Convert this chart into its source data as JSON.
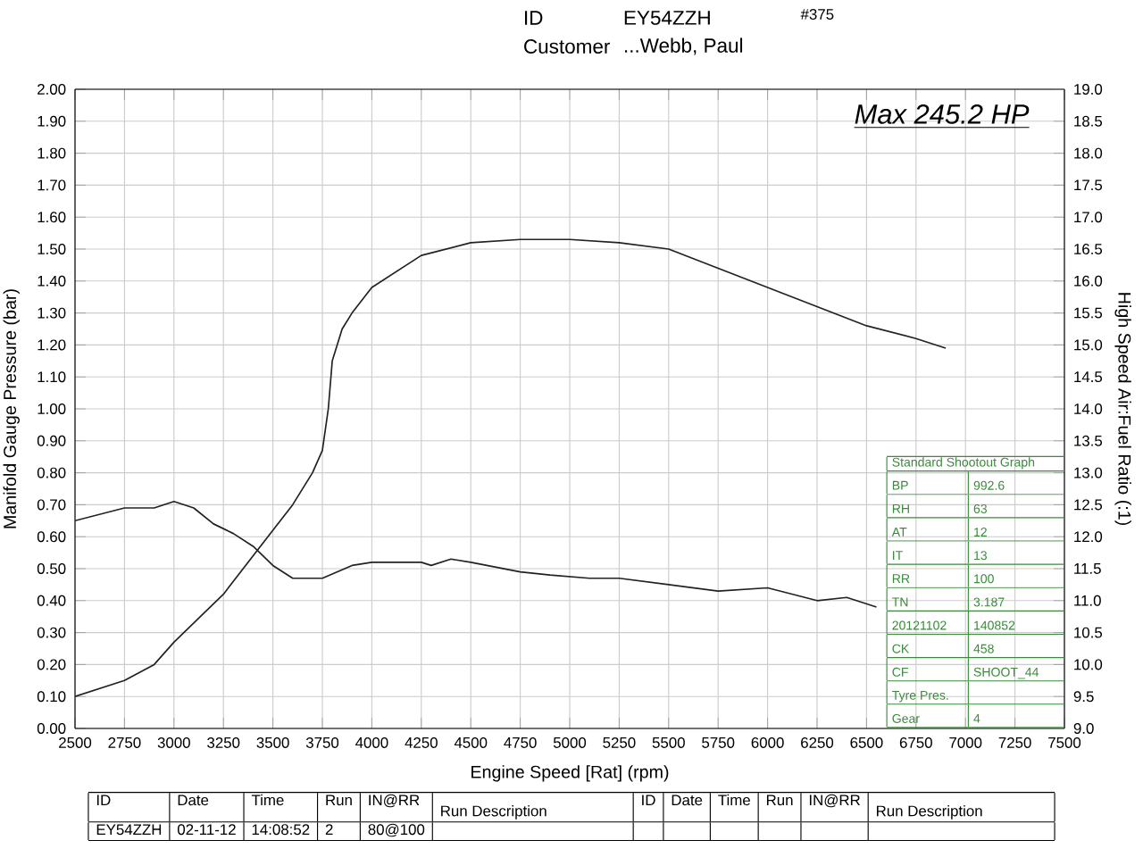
{
  "chart_data": {
    "type": "line",
    "xlabel": "Engine Speed [Rat] (rpm)",
    "ylabel": "Manifold Gauge Pressure (bar)",
    "y2label": "High Speed Air:Fuel Ratio (:1)",
    "xlim": [
      2500,
      7500
    ],
    "xticks": [
      2500,
      2750,
      3000,
      3250,
      3500,
      3750,
      4000,
      4250,
      4500,
      4750,
      5000,
      5250,
      5500,
      5750,
      6000,
      6250,
      6500,
      6750,
      7000,
      7250,
      7500
    ],
    "ylim": [
      0,
      2
    ],
    "yticks": [
      {
        "value": 0,
        "label": "0.00"
      },
      {
        "value": 0.1,
        "label": "0.10"
      },
      {
        "value": 0.2,
        "label": "0.20"
      },
      {
        "value": 0.3,
        "label": "0.30"
      },
      {
        "value": 0.4,
        "label": "0.40"
      },
      {
        "value": 0.5,
        "label": "0.50"
      },
      {
        "value": 0.6,
        "label": "0.60"
      },
      {
        "value": 0.7,
        "label": "0.70"
      },
      {
        "value": 0.8,
        "label": "0.80"
      },
      {
        "value": 0.9,
        "label": "0.90"
      },
      {
        "value": 1.0,
        "label": "1.00"
      },
      {
        "value": 1.1,
        "label": "1.10"
      },
      {
        "value": 1.2,
        "label": "1.20"
      },
      {
        "value": 1.3,
        "label": "1.30"
      },
      {
        "value": 1.4,
        "label": "1.40"
      },
      {
        "value": 1.5,
        "label": "1.50"
      },
      {
        "value": 1.6,
        "label": "1.60"
      },
      {
        "value": 1.7,
        "label": "1.70"
      },
      {
        "value": 1.8,
        "label": "1.80"
      },
      {
        "value": 1.9,
        "label": "1.90"
      },
      {
        "value": 2.0,
        "label": "2.00"
      }
    ],
    "y2lim": [
      9,
      19
    ],
    "y2ticks": [
      {
        "value": 9,
        "label": "9.0"
      },
      {
        "value": 9.5,
        "label": "9.5"
      },
      {
        "value": 10,
        "label": "10.0"
      },
      {
        "value": 10.5,
        "label": "10.5"
      },
      {
        "value": 11,
        "label": "11.0"
      },
      {
        "value": 11.5,
        "label": "11.5"
      },
      {
        "value": 12,
        "label": "12.0"
      },
      {
        "value": 12.5,
        "label": "12.5"
      },
      {
        "value": 13,
        "label": "13.0"
      },
      {
        "value": 13.5,
        "label": "13.5"
      },
      {
        "value": 14,
        "label": "14.0"
      },
      {
        "value": 14.5,
        "label": "14.5"
      },
      {
        "value": 15,
        "label": "15.0"
      },
      {
        "value": 15.5,
        "label": "15.5"
      },
      {
        "value": 16,
        "label": "16.0"
      },
      {
        "value": 16.5,
        "label": "16.5"
      },
      {
        "value": 17,
        "label": "17.0"
      },
      {
        "value": 17.5,
        "label": "17.5"
      },
      {
        "value": 18,
        "label": "18.0"
      },
      {
        "value": 18.5,
        "label": "18.5"
      },
      {
        "value": 19,
        "label": "19.0"
      }
    ],
    "grid": true,
    "marker": "none",
    "line_style": "solid",
    "series": [
      {
        "color": "#222222",
        "axis": "y",
        "x": [
          2500,
          2750,
          2900,
          3000,
          3250,
          3500,
          3600,
          3700,
          3750,
          3780,
          3800,
          3850,
          3900,
          4000,
          4250,
          4500,
          4750,
          5000,
          5250,
          5500,
          5750,
          6000,
          6250,
          6500,
          6750,
          6900
        ],
        "values": [
          0.1,
          0.15,
          0.2,
          0.27,
          0.42,
          0.62,
          0.7,
          0.8,
          0.87,
          1.0,
          1.15,
          1.25,
          1.3,
          1.38,
          1.48,
          1.52,
          1.53,
          1.53,
          1.52,
          1.5,
          1.44,
          1.38,
          1.32,
          1.26,
          1.22,
          1.19
        ]
      },
      {
        "color": "#222222",
        "axis": "y2",
        "x": [
          2500,
          2750,
          2900,
          3000,
          3100,
          3200,
          3300,
          3400,
          3500,
          3600,
          3750,
          3900,
          4000,
          4250,
          4300,
          4400,
          4500,
          4750,
          4900,
          5100,
          5250,
          5500,
          5750,
          6000,
          6250,
          6400,
          6500,
          6550
        ],
        "values": [
          12.25,
          12.45,
          12.45,
          12.55,
          12.45,
          12.2,
          12.05,
          11.85,
          11.55,
          11.35,
          11.35,
          11.55,
          11.6,
          11.6,
          11.55,
          11.65,
          11.6,
          11.45,
          11.4,
          11.35,
          11.35,
          11.25,
          11.15,
          11.2,
          11.0,
          11.05,
          10.95,
          10.9
        ]
      }
    ],
    "annotations": [
      "Max 245.2 HP",
      "ID",
      "EY54ZZH",
      "Customer",
      "...Webb, Paul",
      "#375",
      "Standard Shootout Graph",
      "BP",
      "RH",
      "AT",
      "IT",
      "RR",
      "TN",
      "20121102",
      "CK",
      "CF",
      "Tyre Pres.",
      "Gear",
      "992.6",
      "63",
      "12",
      "13",
      "100",
      "3.187",
      "140852",
      "458",
      "SHOOT_44",
      "4",
      "ID",
      "Date",
      "Time",
      "Run",
      "IN@RR",
      "Run Description",
      "ID",
      "Date",
      "Time",
      "Run",
      "IN@RR",
      "Run Description",
      "EY54ZZH",
      "02-11-12",
      "14:08:52",
      "2",
      "80@100"
    ]
  }
}
